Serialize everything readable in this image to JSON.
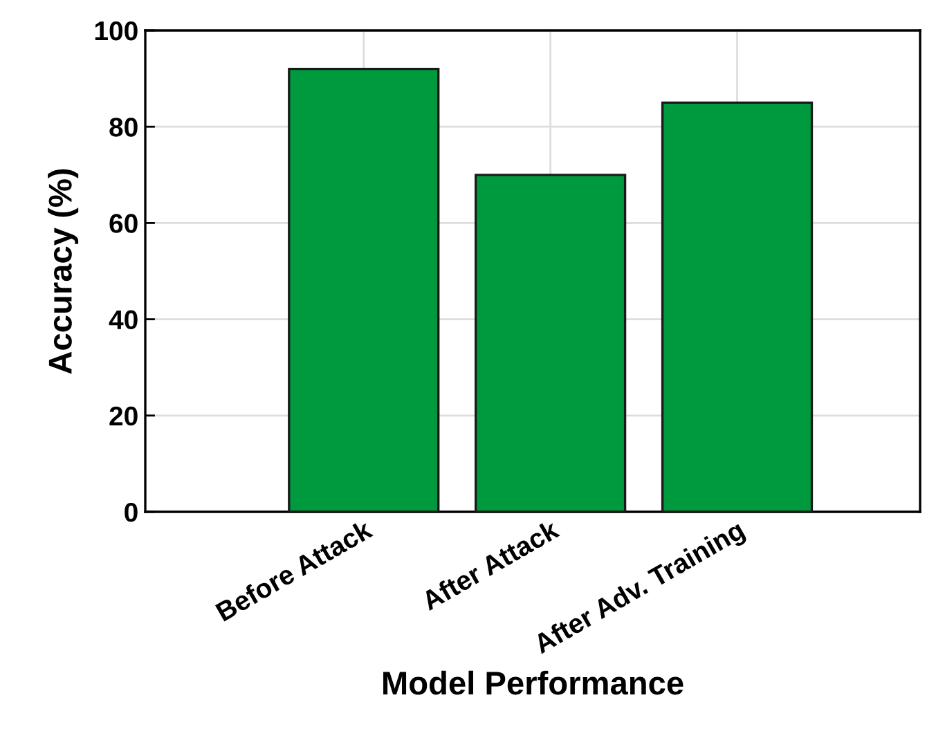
{
  "chart_data": {
    "type": "bar",
    "xlabel": "Model Performance",
    "ylabel": "Accuracy (%)",
    "categories": [
      "Before Attack",
      "After Attack",
      "After Adv. Training"
    ],
    "values": [
      92,
      70,
      85
    ],
    "color": "#009a3e",
    "ylim": [
      0,
      100
    ],
    "yticks": [
      0,
      20,
      40,
      60,
      80,
      100
    ],
    "grid": true
  }
}
